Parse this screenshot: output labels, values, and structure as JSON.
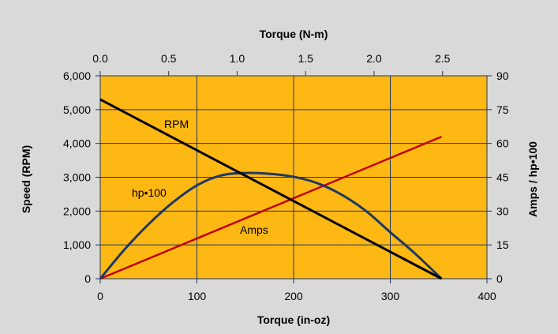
{
  "chart_data": {
    "type": "line",
    "title": "",
    "colors": {
      "background": "#d9d9d9",
      "plot_area": "#fdb813",
      "gridline": "#1f3864",
      "rpm": "#000000",
      "hp": "#1f3864",
      "amps": "#c00000"
    },
    "grid": true,
    "axes": {
      "x_bottom": {
        "label": "Torque (in-oz)",
        "range": [
          0,
          400
        ],
        "ticks": [
          0,
          100,
          200,
          300,
          400
        ],
        "tick_labels": [
          "0",
          "100",
          "200",
          "300",
          "400"
        ]
      },
      "x_top": {
        "label": "Torque (N-m)",
        "range": [
          0,
          2.8247
        ],
        "ticks": [
          0.0,
          0.5,
          1.0,
          1.5,
          2.0,
          2.5
        ],
        "tick_labels": [
          "0.0",
          "0.5",
          "1.0",
          "1.5",
          "2.0",
          "2.5"
        ]
      },
      "y_left": {
        "label": "Speed (RPM)",
        "range": [
          0,
          6000
        ],
        "ticks": [
          0,
          1000,
          2000,
          3000,
          4000,
          5000,
          6000
        ],
        "tick_labels": [
          "0",
          "1,000",
          "2,000",
          "3,000",
          "4,000",
          "5,000",
          "6,000"
        ]
      },
      "y_right": {
        "label": "Amps / hp•100",
        "range": [
          0,
          90
        ],
        "ticks": [
          0,
          15,
          30,
          45,
          60,
          75,
          90
        ],
        "tick_labels": [
          "0",
          "15",
          "30",
          "45",
          "60",
          "75",
          "90"
        ]
      }
    },
    "series": [
      {
        "name": "RPM",
        "axis": "y_left",
        "x": [
          0,
          353
        ],
        "y": [
          5300,
          0
        ]
      },
      {
        "name": "hp•100",
        "axis": "y_right",
        "x": [
          0,
          25,
          50,
          75,
          100,
          125,
          150,
          176.5,
          200,
          225,
          250,
          275,
          300,
          325,
          353
        ],
        "y": [
          0,
          12.9,
          24.2,
          33.8,
          41.4,
          45.8,
          46.9,
          46.5,
          45.2,
          42.3,
          37.2,
          30.0,
          20.6,
          11.4,
          0
        ]
      },
      {
        "name": "Amps",
        "axis": "y_right",
        "x": [
          0,
          353
        ],
        "y": [
          0,
          63
        ]
      }
    ]
  }
}
